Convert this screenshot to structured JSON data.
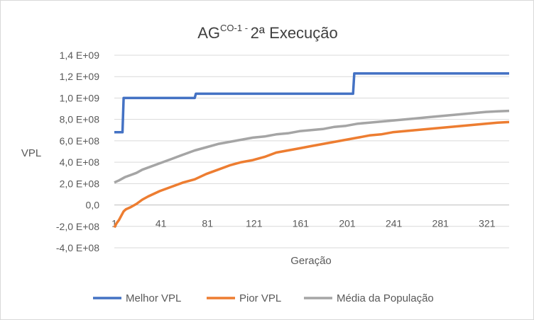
{
  "chart_data": {
    "type": "line",
    "title": {
      "main": "AG",
      "sup": "CO-1 - ",
      "rest": "2ª Execução"
    },
    "xlabel": "Geração",
    "ylabel": "VPL",
    "xlim": [
      1,
      340
    ],
    "ylim": [
      -400000000,
      1400000000
    ],
    "y_ticks": [
      {
        "value": 1400000000,
        "label": "1,4 E+09"
      },
      {
        "value": 1200000000,
        "label": "1,2 E+09"
      },
      {
        "value": 1000000000,
        "label": "1,0 E+09"
      },
      {
        "value": 800000000,
        "label": "8,0 E+08"
      },
      {
        "value": 600000000,
        "label": "6,0 E+08"
      },
      {
        "value": 400000000,
        "label": "4,0 E+08"
      },
      {
        "value": 200000000,
        "label": "2,0 E+08"
      },
      {
        "value": 0,
        "label": "0,0"
      },
      {
        "value": -200000000,
        "label": "-2,0 E+08"
      },
      {
        "value": -400000000,
        "label": "-4,0 E+08"
      }
    ],
    "x_ticks": [
      {
        "value": 1,
        "label": "1"
      },
      {
        "value": 41,
        "label": "41"
      },
      {
        "value": 81,
        "label": "81"
      },
      {
        "value": 121,
        "label": "121"
      },
      {
        "value": 161,
        "label": "161"
      },
      {
        "value": 201,
        "label": "201"
      },
      {
        "value": 241,
        "label": "241"
      },
      {
        "value": 281,
        "label": "281"
      },
      {
        "value": 321,
        "label": "321"
      }
    ],
    "grid": true,
    "legend_position": "bottom",
    "series": [
      {
        "name": "Melhor VPL",
        "color": "#4472c4",
        "x": [
          1,
          8,
          9,
          70,
          71,
          206,
          207,
          340
        ],
        "y": [
          680000000,
          680000000,
          1000000000,
          1000000000,
          1040000000,
          1040000000,
          1230000000,
          1230000000
        ]
      },
      {
        "name": "Pior VPL",
        "color": "#ed7d31",
        "x": [
          1,
          3,
          5,
          7,
          9,
          11,
          15,
          20,
          25,
          30,
          40,
          50,
          60,
          70,
          80,
          90,
          100,
          110,
          120,
          130,
          140,
          150,
          160,
          170,
          180,
          190,
          200,
          210,
          220,
          230,
          240,
          250,
          260,
          270,
          280,
          290,
          300,
          310,
          320,
          330,
          340
        ],
        "y": [
          -210000000,
          -170000000,
          -140000000,
          -100000000,
          -60000000,
          -40000000,
          -20000000,
          10000000,
          50000000,
          80000000,
          130000000,
          170000000,
          210000000,
          240000000,
          290000000,
          330000000,
          370000000,
          400000000,
          420000000,
          450000000,
          490000000,
          510000000,
          530000000,
          550000000,
          570000000,
          590000000,
          610000000,
          630000000,
          650000000,
          660000000,
          680000000,
          690000000,
          700000000,
          710000000,
          720000000,
          730000000,
          740000000,
          750000000,
          760000000,
          770000000,
          775000000
        ]
      },
      {
        "name": "Média da População",
        "color": "#a5a5a5",
        "x": [
          1,
          5,
          10,
          15,
          20,
          25,
          30,
          40,
          50,
          60,
          70,
          80,
          90,
          100,
          110,
          120,
          130,
          140,
          150,
          160,
          170,
          180,
          190,
          200,
          210,
          220,
          230,
          240,
          250,
          260,
          270,
          280,
          290,
          300,
          310,
          320,
          330,
          340
        ],
        "y": [
          210000000,
          230000000,
          260000000,
          280000000,
          300000000,
          330000000,
          350000000,
          390000000,
          430000000,
          470000000,
          510000000,
          540000000,
          570000000,
          590000000,
          610000000,
          630000000,
          640000000,
          660000000,
          670000000,
          690000000,
          700000000,
          710000000,
          730000000,
          740000000,
          760000000,
          770000000,
          780000000,
          790000000,
          800000000,
          810000000,
          820000000,
          830000000,
          840000000,
          850000000,
          860000000,
          870000000,
          875000000,
          880000000
        ]
      }
    ]
  }
}
